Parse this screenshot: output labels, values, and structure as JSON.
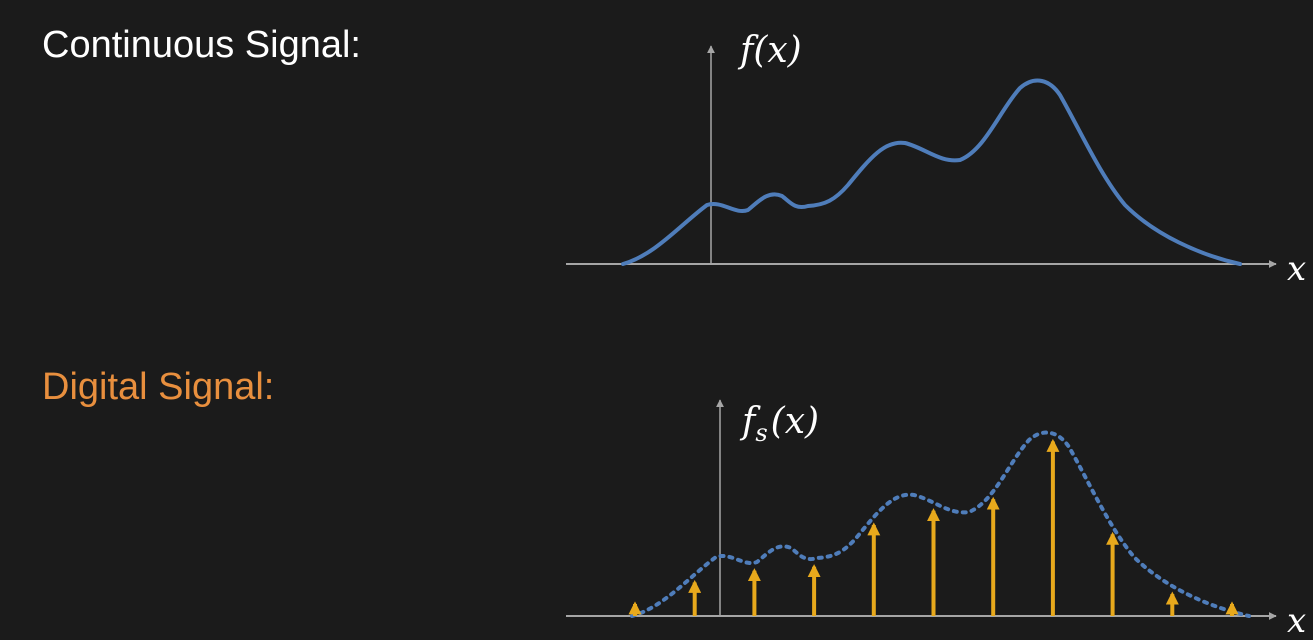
{
  "continuous": {
    "heading": "Continuous Signal:",
    "heading_color": "#ffffff",
    "y_label": "f(x)",
    "x_label": "x",
    "curve_color": "#4f7dba",
    "axis_color": "#a6a6a6"
  },
  "digital": {
    "heading": "Digital Signal:",
    "heading_color": "#e88f3e",
    "y_label_main": "f",
    "y_label_sub": "s",
    "y_label_arg": "(x)",
    "x_label": "x",
    "curve_color": "#4f7dba",
    "sample_color": "#e8a91c",
    "axis_color": "#a6a6a6"
  }
}
